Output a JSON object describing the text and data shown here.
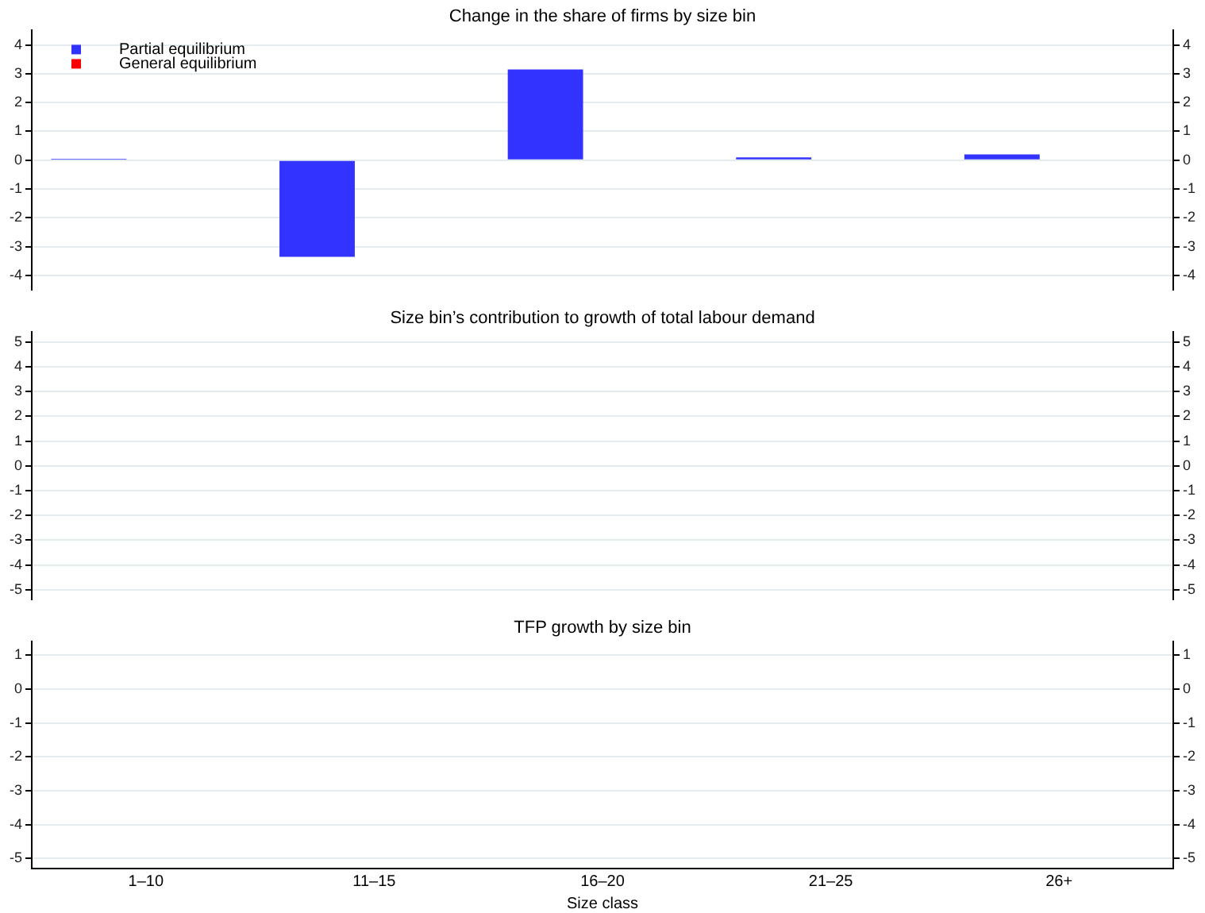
{
  "chart_data": [
    {
      "type": "bar",
      "title": "Change in the share of firms by size bin",
      "categories": [
        null,
        null,
        null,
        null,
        null
      ],
      "series": [
        {
          "name": "Partial equilibrium",
          "color": "#3333ff",
          "values": [
            0.05,
            -3.35,
            3.15,
            0.1,
            0.2
          ]
        },
        {
          "name": "General equilibrium",
          "color": "#ff0000",
          "values": [
            null,
            null,
            null,
            null,
            null
          ]
        }
      ],
      "ylim": [
        -4.5,
        4.5
      ],
      "yticks": [
        -4,
        -3,
        -2,
        -1,
        0,
        1,
        2,
        3,
        4
      ],
      "y2lim": [
        -4.5,
        4.5
      ],
      "y2ticks": [
        -4,
        -3,
        -2,
        -1,
        0,
        1,
        2,
        3,
        4
      ],
      "grid": "y",
      "legend": "top left",
      "tick_labels": "y"
    },
    {
      "type": "bar",
      "title": "Size bin’s contribution to growth of total labour demand",
      "categories": [
        null,
        null,
        null,
        null,
        null
      ],
      "series": [
        {
          "color": "#3333ff",
          "values": [
            null,
            null,
            null,
            null,
            null
          ]
        },
        {
          "color": "#ff0000",
          "values": [
            null,
            null,
            null,
            null,
            null
          ]
        }
      ],
      "ylim": [
        -5.4,
        5.4
      ],
      "yticks": [
        -5,
        -4,
        -3,
        -2,
        -1,
        0,
        1,
        2,
        3,
        4,
        5
      ],
      "y2lim": [
        -5.4,
        5.4
      ],
      "y2ticks": [
        -5,
        -4,
        -3,
        -2,
        -1,
        0,
        1,
        2,
        3,
        4,
        5
      ],
      "grid": "y",
      "tick_labels": "y"
    },
    {
      "type": "bar",
      "title": "TFP growth by size bin",
      "xlabel": "Size class",
      "categories": [
        "1–10",
        "11–15",
        "16–20",
        "21–25",
        "26+"
      ],
      "series": [
        {
          "color": "#3333ff",
          "values": [
            null,
            null,
            null,
            null,
            null
          ]
        },
        {
          "color": "#ff0000",
          "values": [
            null,
            null,
            null,
            null,
            null
          ]
        }
      ],
      "ylim": [
        -5.3,
        1.4
      ],
      "yticks": [
        -5,
        -4,
        -3,
        -2,
        -1,
        0,
        1
      ],
      "y2lim": [
        -5.3,
        1.4
      ],
      "y2ticks": [
        -5,
        -4,
        -3,
        -2,
        -1,
        0,
        1
      ],
      "grid": "y"
    }
  ]
}
